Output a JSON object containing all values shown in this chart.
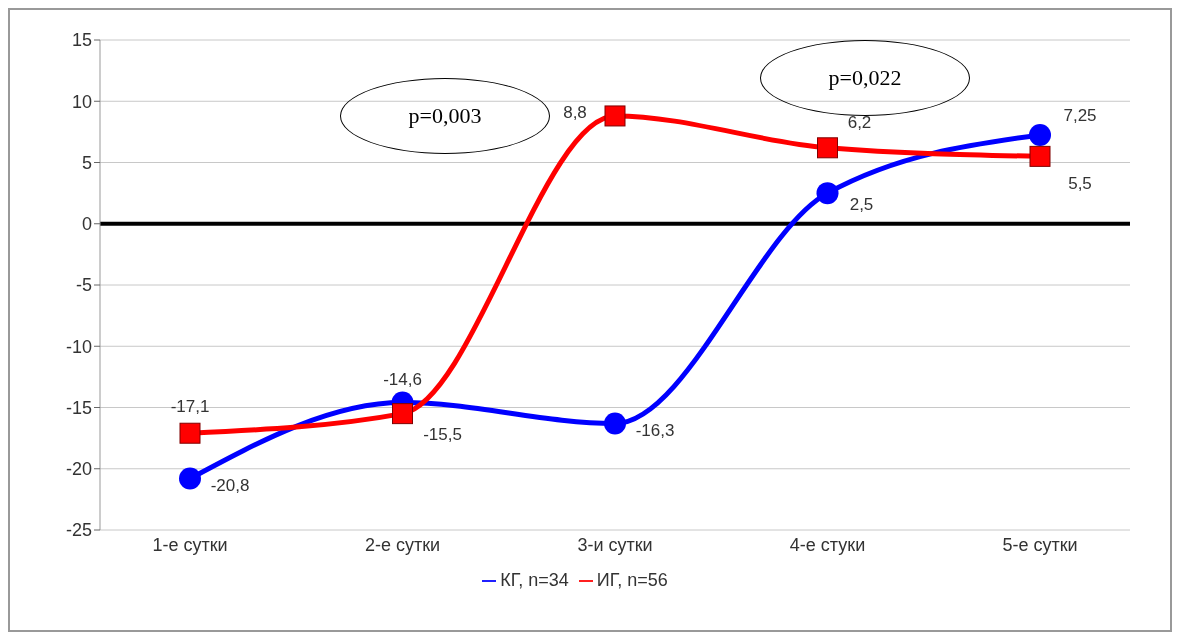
{
  "chart_data": {
    "type": "line",
    "categories": [
      "1-е сутки",
      "2-е сутки",
      "3-и сутки",
      "4-е стуки",
      "5-е сутки"
    ],
    "series": [
      {
        "name": "КГ, n=34",
        "color": "#0000ff",
        "marker": "circle",
        "values": [
          -20.8,
          -14.6,
          -16.3,
          2.5,
          7.25
        ],
        "value_labels": [
          "-20,8",
          "-14,6",
          "-16,3",
          "2,5",
          "7,25"
        ]
      },
      {
        "name": "ИГ, n=56",
        "color": "#ff0000",
        "marker": "square",
        "values": [
          -17.1,
          -15.5,
          8.8,
          6.2,
          5.5
        ],
        "value_labels": [
          "-17,1",
          "-15,5",
          "8,8",
          "6,2",
          "5,5"
        ]
      }
    ],
    "ylim": [
      -25,
      15
    ],
    "yticks": [
      -25,
      -20,
      -15,
      -10,
      -5,
      0,
      5,
      10,
      15
    ],
    "grid": "y",
    "legend": "bottom",
    "annotations": [
      "p=0,003",
      "p=0,022"
    ]
  }
}
